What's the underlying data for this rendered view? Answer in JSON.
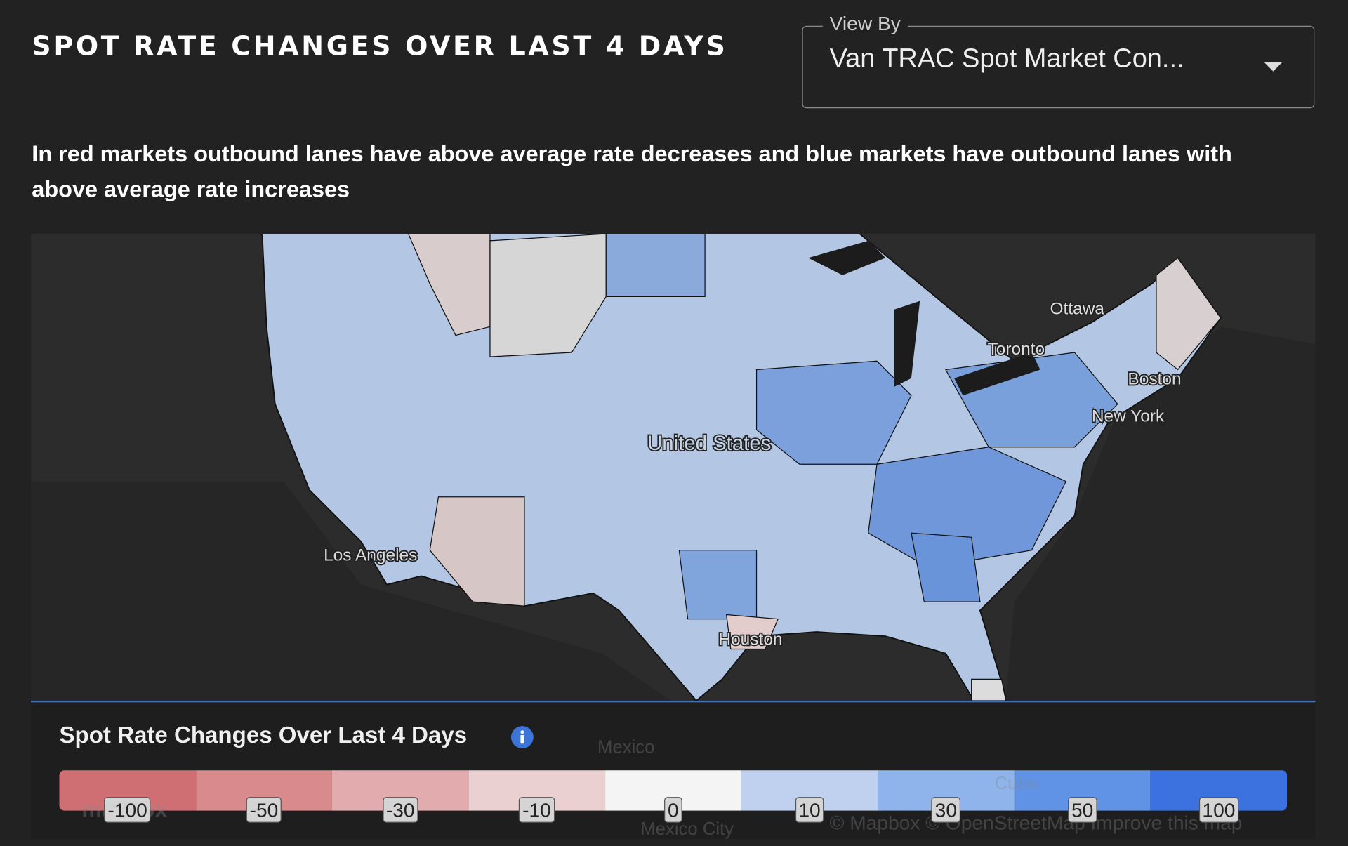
{
  "header": {
    "title": "SPOT RATE CHANGES OVER LAST 4 DAYS",
    "description": "In red markets outbound lanes have above average rate decreases and blue markets have outbound lanes with above average rate increases"
  },
  "dropdown": {
    "label": "View By",
    "value": "Van TRAC Spot Market Con..."
  },
  "map": {
    "labels": [
      "Ottawa",
      "Toronto",
      "Boston",
      "New York",
      "United States",
      "Los Angeles",
      "Houston"
    ],
    "faint_labels": [
      "Mexico",
      "Mexico City",
      "Cuba"
    ],
    "logo": "mapbox",
    "attribution": "© Mapbox © OpenStreetMap Improve this map"
  },
  "legend": {
    "title": "Spot Rate Changes Over Last 4 Days",
    "ticks": [
      -100,
      -50,
      -30,
      -10,
      0,
      10,
      30,
      50,
      100
    ],
    "colors": [
      "#cf6f74",
      "#d98a8d",
      "#e2acae",
      "#ebd0d1",
      "#f4f4f4",
      "#bfd1ef",
      "#8fb3eb",
      "#6092e6",
      "#3b72df"
    ]
  }
}
